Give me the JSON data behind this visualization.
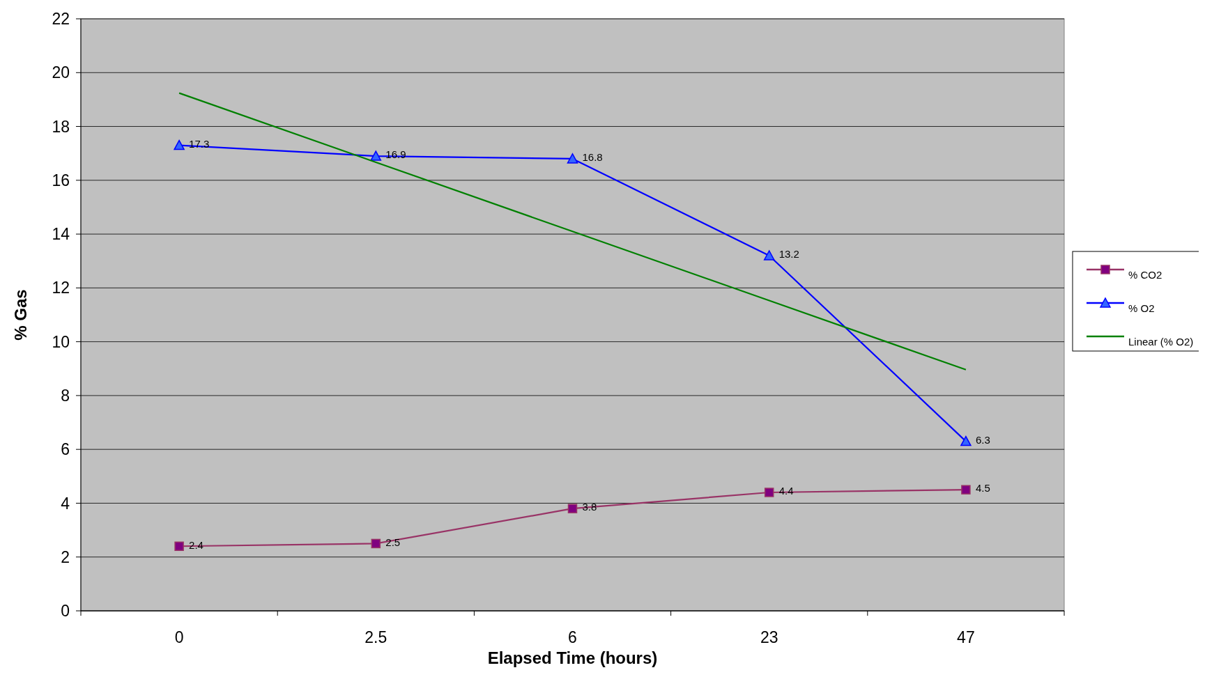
{
  "chart_data": {
    "type": "line",
    "xlabel": "Elapsed Time (hours)",
    "ylabel": "% Gas",
    "categories": [
      "0",
      "2.5",
      "6",
      "23",
      "47"
    ],
    "series": [
      {
        "name": "% CO2",
        "color": "#993366",
        "values": [
          2.4,
          2.5,
          3.8,
          4.4,
          4.5
        ],
        "marker": "square"
      },
      {
        "name": "% O2",
        "color": "#0000ff",
        "values": [
          17.3,
          16.9,
          16.8,
          13.2,
          6.3
        ],
        "marker": "triangle"
      },
      {
        "name": "Linear (% O2)",
        "color": "#008000",
        "values": [
          19.24,
          16.67,
          14.1,
          11.53,
          8.96
        ],
        "marker": "none",
        "value_labels": [
          null,
          null,
          null,
          null,
          null
        ]
      }
    ],
    "data_labels": true,
    "ylim": [
      0,
      22
    ],
    "yticks": [
      0,
      2,
      4,
      6,
      8,
      10,
      12,
      14,
      16,
      18,
      20,
      22
    ],
    "grid": "y",
    "legend": "right"
  }
}
